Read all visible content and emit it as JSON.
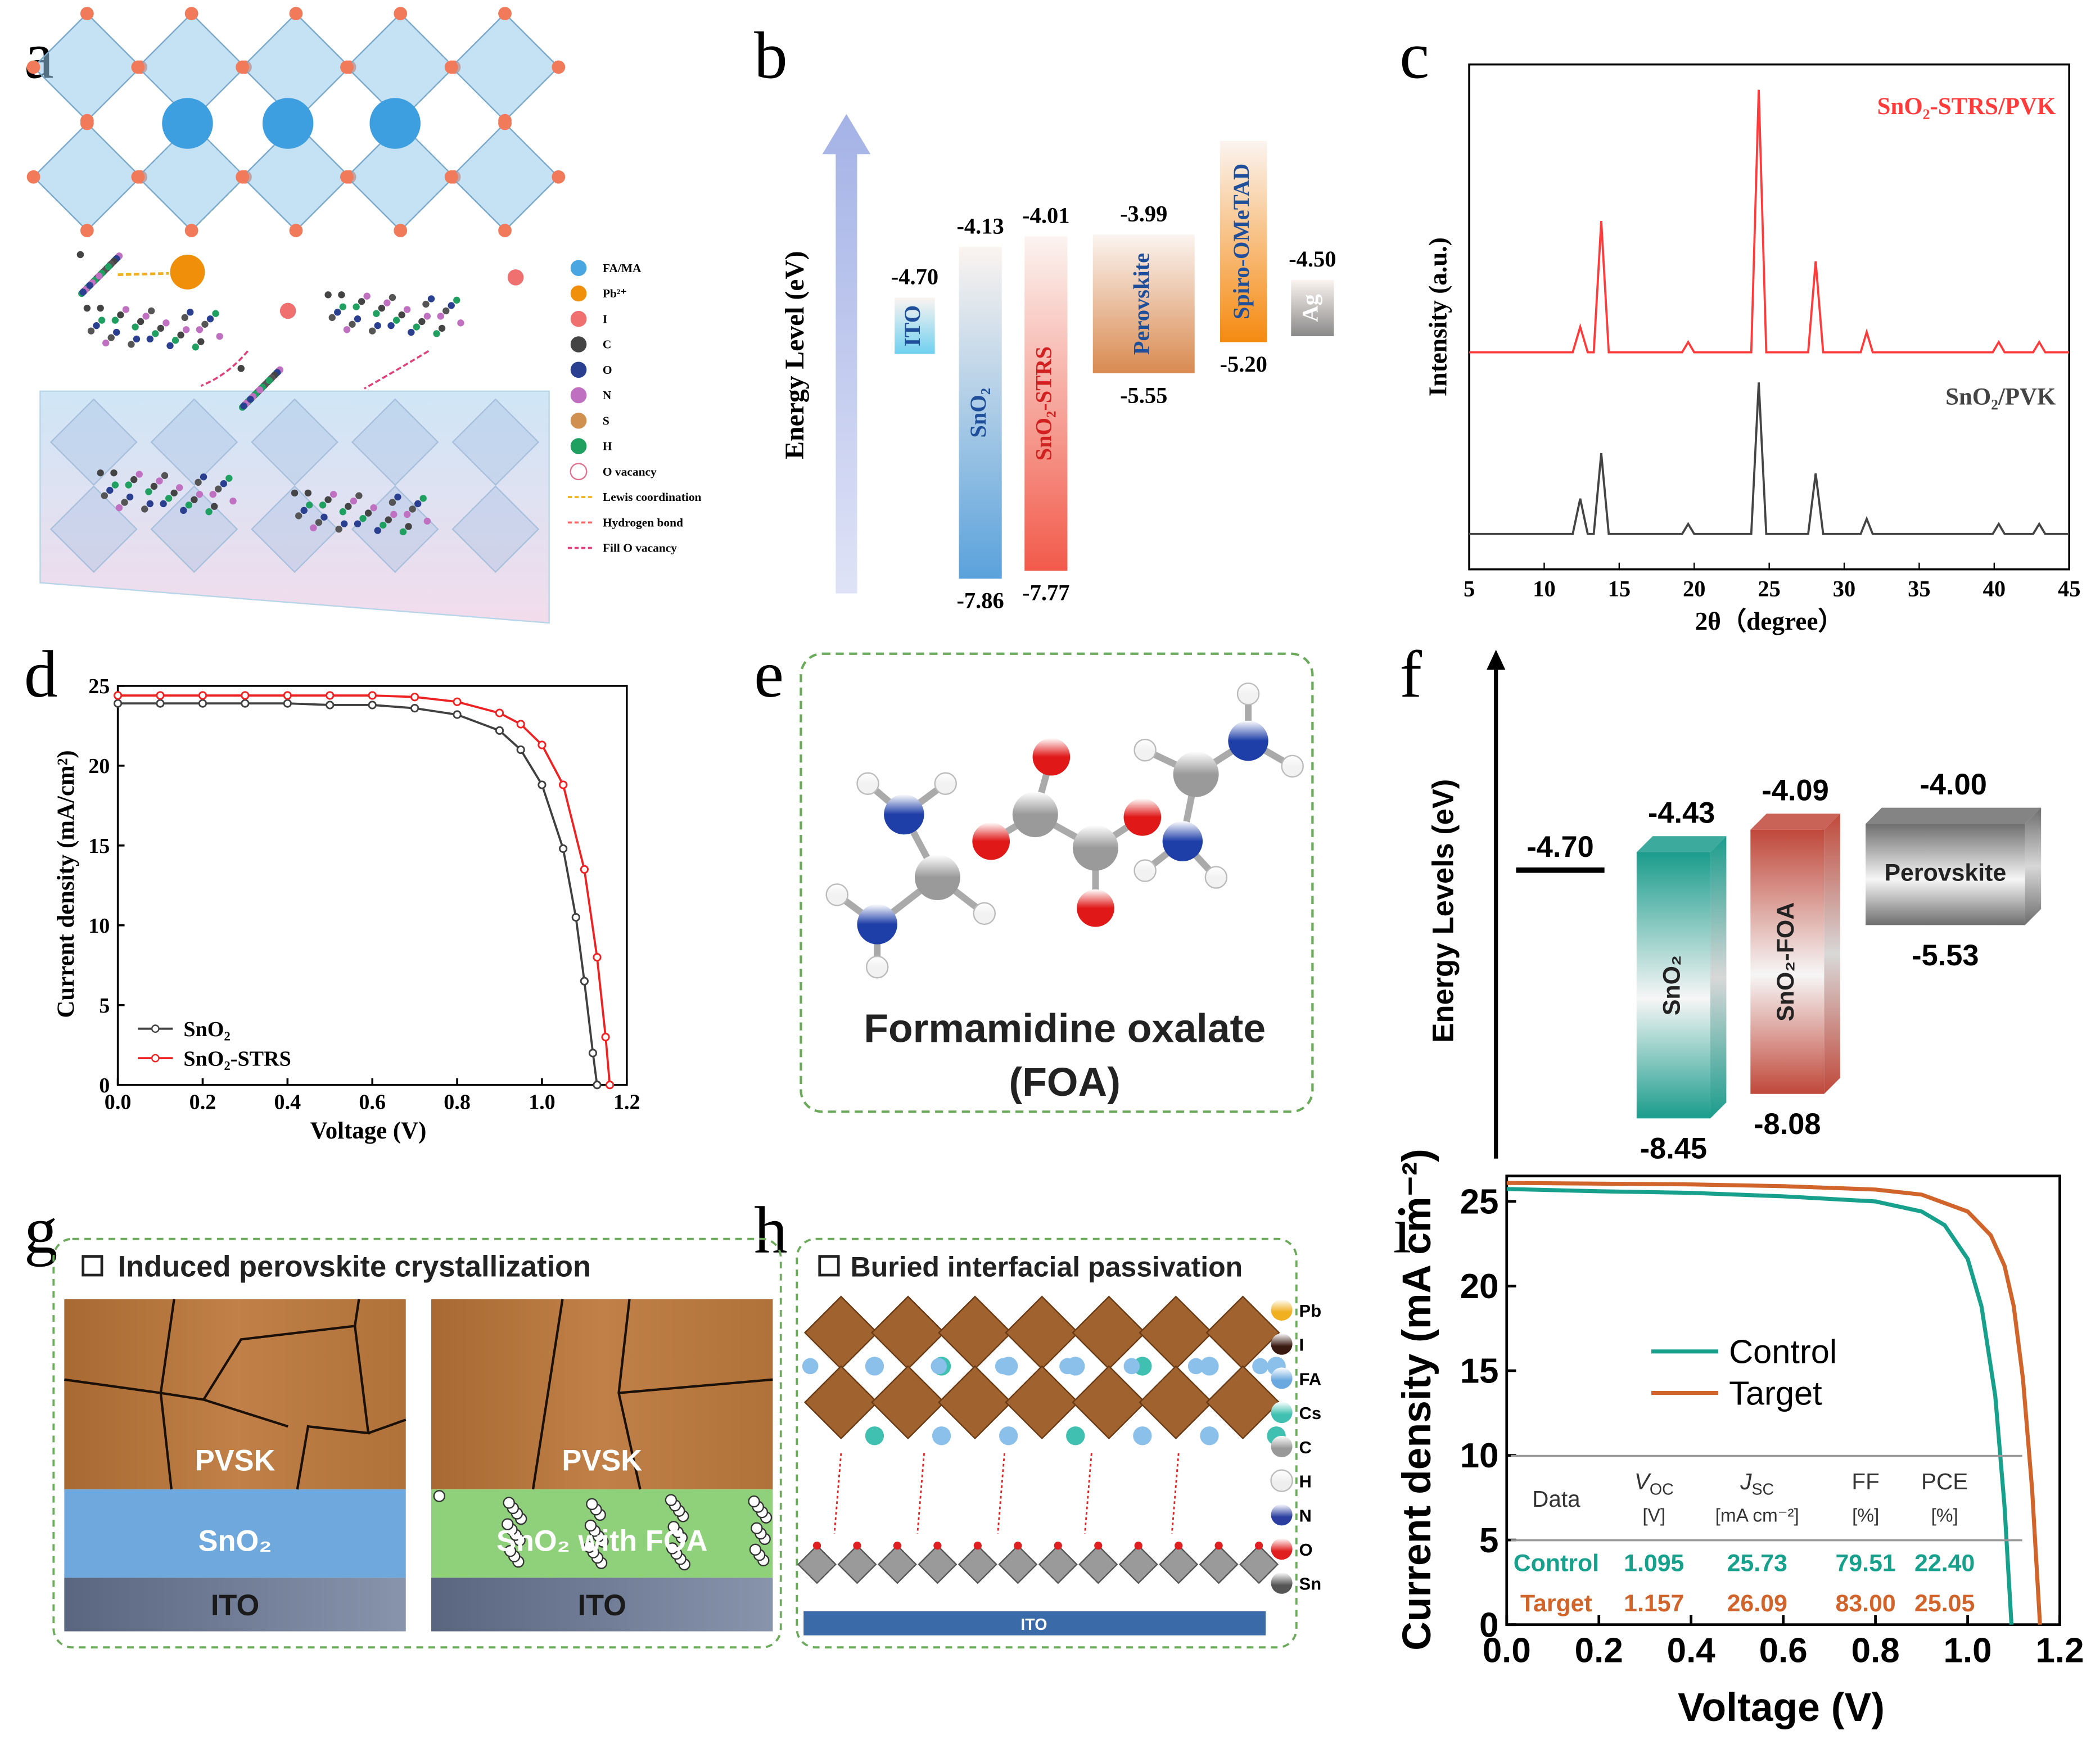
{
  "panel_labels": [
    "a",
    "b",
    "c",
    "d",
    "e",
    "f",
    "g",
    "h",
    "i"
  ],
  "panel_a": {
    "legend": [
      "FA/MA",
      "Pb²⁺",
      "I",
      "C",
      "O",
      "N",
      "S",
      "H",
      "O vacancy",
      "Lewis coordination",
      "Hydrogen bond",
      "Fill O vacancy"
    ]
  },
  "panel_e": {
    "title": [
      "Formamidine oxalate",
      "(FOA)"
    ]
  },
  "panel_g": {
    "title": "Induced perovskite crystallization",
    "left": [
      "PVSK",
      "SnO₂",
      "ITO"
    ],
    "right": [
      "PVSK",
      "SnO₂ with FOA",
      "ITO"
    ]
  },
  "panel_h": {
    "title": "Buried interfacial passivation",
    "legend": [
      "Pb",
      "I",
      "FA",
      "Cs",
      "C",
      "H",
      "N",
      "O",
      "Sn"
    ],
    "substrate": "ITO"
  },
  "chart_data": [
    {
      "type": "band",
      "ylabel": "Energy Level (eV)",
      "layers": [
        {
          "name": "ITO",
          "color": "#6fd0f0",
          "text_color": "#1f4f9a",
          "top": -4.7,
          "top_label": "-4.70",
          "bottom": null
        },
        {
          "name": "SnO₂",
          "color": "#5aa2dc",
          "text_color": "#1f4f9a",
          "top": -4.13,
          "top_label": "-4.13",
          "bottom": -7.86,
          "bottom_label": "-7.86"
        },
        {
          "name": "SnO₂-STRS",
          "color": "#f25a4a",
          "text_color": "#d02020",
          "top": -4.01,
          "top_label": "-4.01",
          "bottom": -7.77,
          "bottom_label": "-7.77"
        },
        {
          "name": "Perovskite",
          "color": "#d98a50",
          "text_color": "#1f4f9a",
          "top": -3.99,
          "top_label": "-3.99",
          "bottom": -5.55,
          "bottom_label": "-5.55"
        },
        {
          "name": "Spiro-OMeTAD",
          "color": "#f58a10",
          "text_color": "#1f4f9a",
          "top": null,
          "bottom": -5.2,
          "bottom_label": "-5.20"
        },
        {
          "name": "Ag",
          "color": "#8a8a8a",
          "text_color": "#ffffff",
          "top": -4.5,
          "top_label": "-4.50",
          "bottom": null
        }
      ]
    },
    {
      "type": "xrd",
      "xlabel": "2θ（degree）",
      "ylabel": "Intensity (a.u.)",
      "xlim": [
        5,
        45
      ],
      "xticks": [
        5,
        10,
        15,
        20,
        25,
        30,
        35,
        40,
        45
      ],
      "ylim": [
        0,
        100
      ],
      "x": [
        5,
        11.9,
        12.4,
        12.9,
        13.3,
        13.8,
        14.3,
        19.2,
        19.6,
        20.0,
        23.8,
        24.3,
        24.8,
        27.6,
        28.1,
        28.6,
        31.1,
        31.5,
        31.9,
        39.9,
        40.3,
        40.7,
        42.6,
        43.0,
        43.4,
        45
      ],
      "series": [
        {
          "name": "SnO₂-STRS/PVK",
          "color": "#ff3b3b",
          "values": [
            43,
            43,
            48,
            43,
            43,
            69,
            43,
            43,
            45,
            43,
            43,
            95,
            43,
            43,
            61,
            43,
            43,
            47,
            43,
            43,
            45,
            43,
            43,
            45,
            43,
            43
          ]
        },
        {
          "name": "SnO₂/PVK",
          "color": "#444444",
          "values": [
            7,
            7,
            14,
            7,
            7,
            23,
            7,
            7,
            9,
            7,
            7,
            37,
            7,
            7,
            19,
            7,
            7,
            10,
            7,
            7,
            9,
            7,
            7,
            9,
            7,
            7
          ]
        }
      ]
    },
    {
      "type": "jv",
      "xlabel": "Voltage (V)",
      "ylabel": "Current density (mA/cm²)",
      "xlim": [
        0,
        1.2
      ],
      "xticks": [
        {
          "value": 0,
          "label": "0.0"
        },
        0.2,
        0.4,
        0.6,
        0.8,
        {
          "value": 1,
          "label": "1.0"
        },
        1.2
      ],
      "ylim": [
        0,
        25
      ],
      "yticks": [
        0,
        5,
        10,
        15,
        20,
        25
      ],
      "legend": "lower left",
      "series": [
        {
          "name": "SnO₂",
          "color": "#404040",
          "x": [
            0,
            0.1,
            0.2,
            0.3,
            0.4,
            0.5,
            0.6,
            0.7,
            0.8,
            0.9,
            0.95,
            1.0,
            1.05,
            1.08,
            1.1,
            1.12,
            1.13
          ],
          "values": [
            23.9,
            23.9,
            23.9,
            23.9,
            23.9,
            23.8,
            23.8,
            23.6,
            23.2,
            22.2,
            21.0,
            18.8,
            14.8,
            10.5,
            6.5,
            2.0,
            0
          ]
        },
        {
          "name": "SnO₂-STRS",
          "color": "#ee2222",
          "x": [
            0,
            0.1,
            0.2,
            0.3,
            0.4,
            0.5,
            0.6,
            0.7,
            0.8,
            0.9,
            0.95,
            1.0,
            1.05,
            1.1,
            1.13,
            1.15,
            1.16
          ],
          "values": [
            24.4,
            24.4,
            24.4,
            24.4,
            24.4,
            24.4,
            24.4,
            24.3,
            24.0,
            23.3,
            22.6,
            21.3,
            18.8,
            13.5,
            8.0,
            3.0,
            0
          ]
        }
      ]
    },
    {
      "type": "band3d",
      "ylabel": "Energy Levels (eV)",
      "electrode": {
        "value": -4.7,
        "label": "-4.70"
      },
      "layers": [
        {
          "name": "SnO₂",
          "color": "#1a9c8c",
          "top": -4.43,
          "top_label": "-4.43",
          "bottom": -8.45,
          "bottom_label": "-8.45"
        },
        {
          "name": "SnO₂-FOA",
          "color": "#c0483a",
          "top": -4.09,
          "top_label": "-4.09",
          "bottom": -8.08,
          "bottom_label": "-8.08"
        },
        {
          "name": "Perovskite",
          "color": "#6e6e6e",
          "top": -4.0,
          "top_label": "-4.00",
          "bottom": -5.53,
          "bottom_label": "-5.53"
        }
      ]
    },
    {
      "type": "jv",
      "xlabel": "Voltage (V)",
      "ylabel": "Current density (mA cm⁻²)",
      "xlim": [
        0,
        1.2
      ],
      "xticks": [
        {
          "value": 0,
          "label": "0.0"
        },
        0.2,
        0.4,
        0.6,
        0.8,
        {
          "value": 1,
          "label": "1.0"
        },
        1.2
      ],
      "ylim": [
        0,
        26.5
      ],
      "yticks": [
        0,
        5,
        10,
        15,
        20,
        25
      ],
      "legend": "upper center",
      "series": [
        {
          "name": "Control",
          "color": "#17a08c",
          "x": [
            0,
            0.2,
            0.4,
            0.6,
            0.8,
            0.9,
            0.95,
            1.0,
            1.03,
            1.06,
            1.08,
            1.095
          ],
          "values": [
            25.73,
            25.6,
            25.5,
            25.3,
            25.0,
            24.4,
            23.6,
            21.6,
            18.8,
            13.5,
            7.0,
            0
          ]
        },
        {
          "name": "Target",
          "color": "#d0642a",
          "x": [
            0,
            0.2,
            0.4,
            0.6,
            0.8,
            0.9,
            1.0,
            1.05,
            1.08,
            1.1,
            1.12,
            1.14,
            1.157
          ],
          "values": [
            26.09,
            26.05,
            26.0,
            25.9,
            25.7,
            25.4,
            24.4,
            23.0,
            21.2,
            18.8,
            14.5,
            8.0,
            0
          ]
        }
      ],
      "table": {
        "header": [
          {
            "text": "Data"
          },
          {
            "text": "V",
            "sub": "OC",
            "unit": "[V]"
          },
          {
            "text": "J",
            "sub": "SC",
            "unit": "[mA cm⁻²]"
          },
          {
            "text": "FF",
            "unit": "[%]"
          },
          {
            "text": "PCE",
            "unit": "[%]"
          }
        ],
        "rows": [
          [
            "Control",
            "1.095",
            "25.73",
            "79.51",
            "22.40"
          ],
          [
            "Target",
            "1.157",
            "26.09",
            "83.00",
            "25.05"
          ]
        ]
      }
    }
  ]
}
